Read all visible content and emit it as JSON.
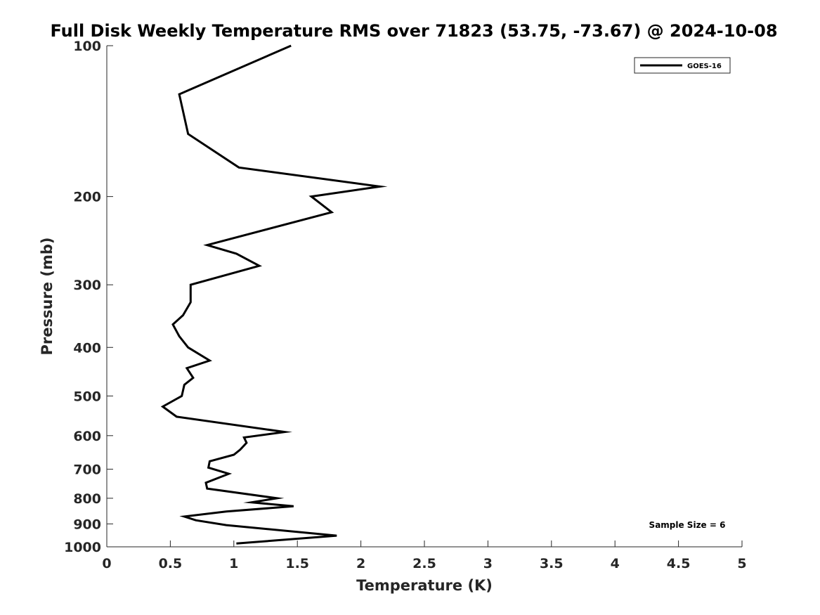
{
  "chart_data": {
    "type": "line",
    "title": "Full Disk Weekly Temperature RMS over 71823 (53.75, -73.67) @ 2024-10-08",
    "xlabel": "Temperature (K)",
    "ylabel": "Pressure (mb)",
    "xlim": [
      0,
      5
    ],
    "ylim": [
      1000,
      100
    ],
    "y_scale": "log",
    "y_reversed": true,
    "grid": false,
    "xticks": [
      0,
      0.5,
      1,
      1.5,
      2,
      2.5,
      3,
      3.5,
      4,
      4.5,
      5
    ],
    "xtick_labels": [
      "0",
      "0.5",
      "1",
      "1.5",
      "2",
      "2.5",
      "3",
      "3.5",
      "4",
      "4.5",
      "5"
    ],
    "yticks": [
      100,
      200,
      300,
      400,
      500,
      600,
      700,
      800,
      900,
      1000
    ],
    "ytick_labels": [
      "100",
      "200",
      "300",
      "400",
      "500",
      "600",
      "700",
      "800",
      "900",
      "1000"
    ],
    "legend": {
      "placement": "top-right",
      "entries": [
        "GOES-16"
      ]
    },
    "annotation": "Sample Size = 6",
    "series": [
      {
        "name": "GOES-16",
        "color": "#000000",
        "points": [
          [
            1.45,
            100
          ],
          [
            0.57,
            125
          ],
          [
            0.64,
            150
          ],
          [
            1.04,
            175
          ],
          [
            2.15,
            191
          ],
          [
            1.61,
            200
          ],
          [
            1.77,
            215
          ],
          [
            0.79,
            250
          ],
          [
            1.02,
            260
          ],
          [
            1.2,
            275
          ],
          [
            0.66,
            300
          ],
          [
            0.66,
            325
          ],
          [
            0.6,
            345
          ],
          [
            0.52,
            360
          ],
          [
            0.57,
            380
          ],
          [
            0.64,
            400
          ],
          [
            0.81,
            425
          ],
          [
            0.63,
            440
          ],
          [
            0.68,
            460
          ],
          [
            0.61,
            475
          ],
          [
            0.59,
            500
          ],
          [
            0.44,
            525
          ],
          [
            0.55,
            550
          ],
          [
            1.4,
            590
          ],
          [
            1.08,
            605
          ],
          [
            1.1,
            620
          ],
          [
            1.05,
            640
          ],
          [
            1.0,
            655
          ],
          [
            0.81,
            675
          ],
          [
            0.8,
            695
          ],
          [
            0.96,
            715
          ],
          [
            0.78,
            745
          ],
          [
            0.79,
            765
          ],
          [
            1.34,
            800
          ],
          [
            1.14,
            815
          ],
          [
            1.47,
            830
          ],
          [
            0.94,
            850
          ],
          [
            0.61,
            870
          ],
          [
            0.7,
            885
          ],
          [
            0.94,
            905
          ],
          [
            1.81,
            950
          ],
          [
            1.02,
            985
          ]
        ]
      }
    ]
  }
}
